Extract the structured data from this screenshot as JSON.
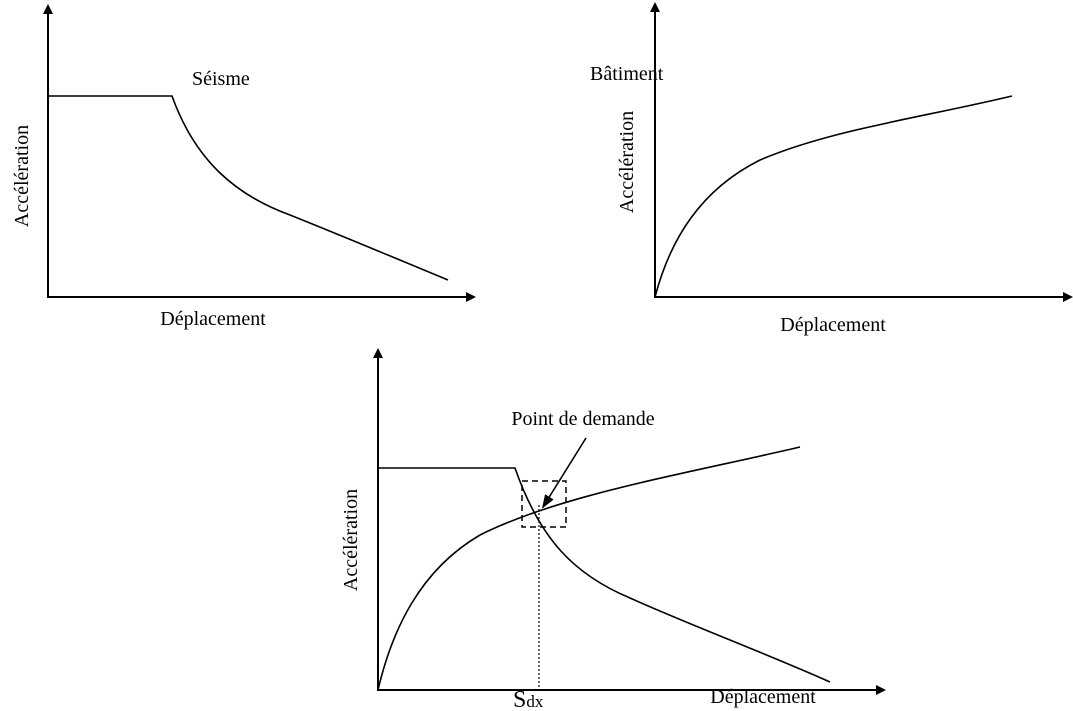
{
  "panels": [
    {
      "title": "Séisme",
      "y_label": "Accélération",
      "x_label": "Déplacement"
    },
    {
      "title": "Bâtiment",
      "y_label": "Accélération",
      "x_label": "Déplacement"
    },
    {
      "annotation": "Point de demande",
      "y_label": "Accélération",
      "x_label": "Déplacement",
      "point_label": {
        "main": "S",
        "sub": "dx"
      }
    }
  ]
}
